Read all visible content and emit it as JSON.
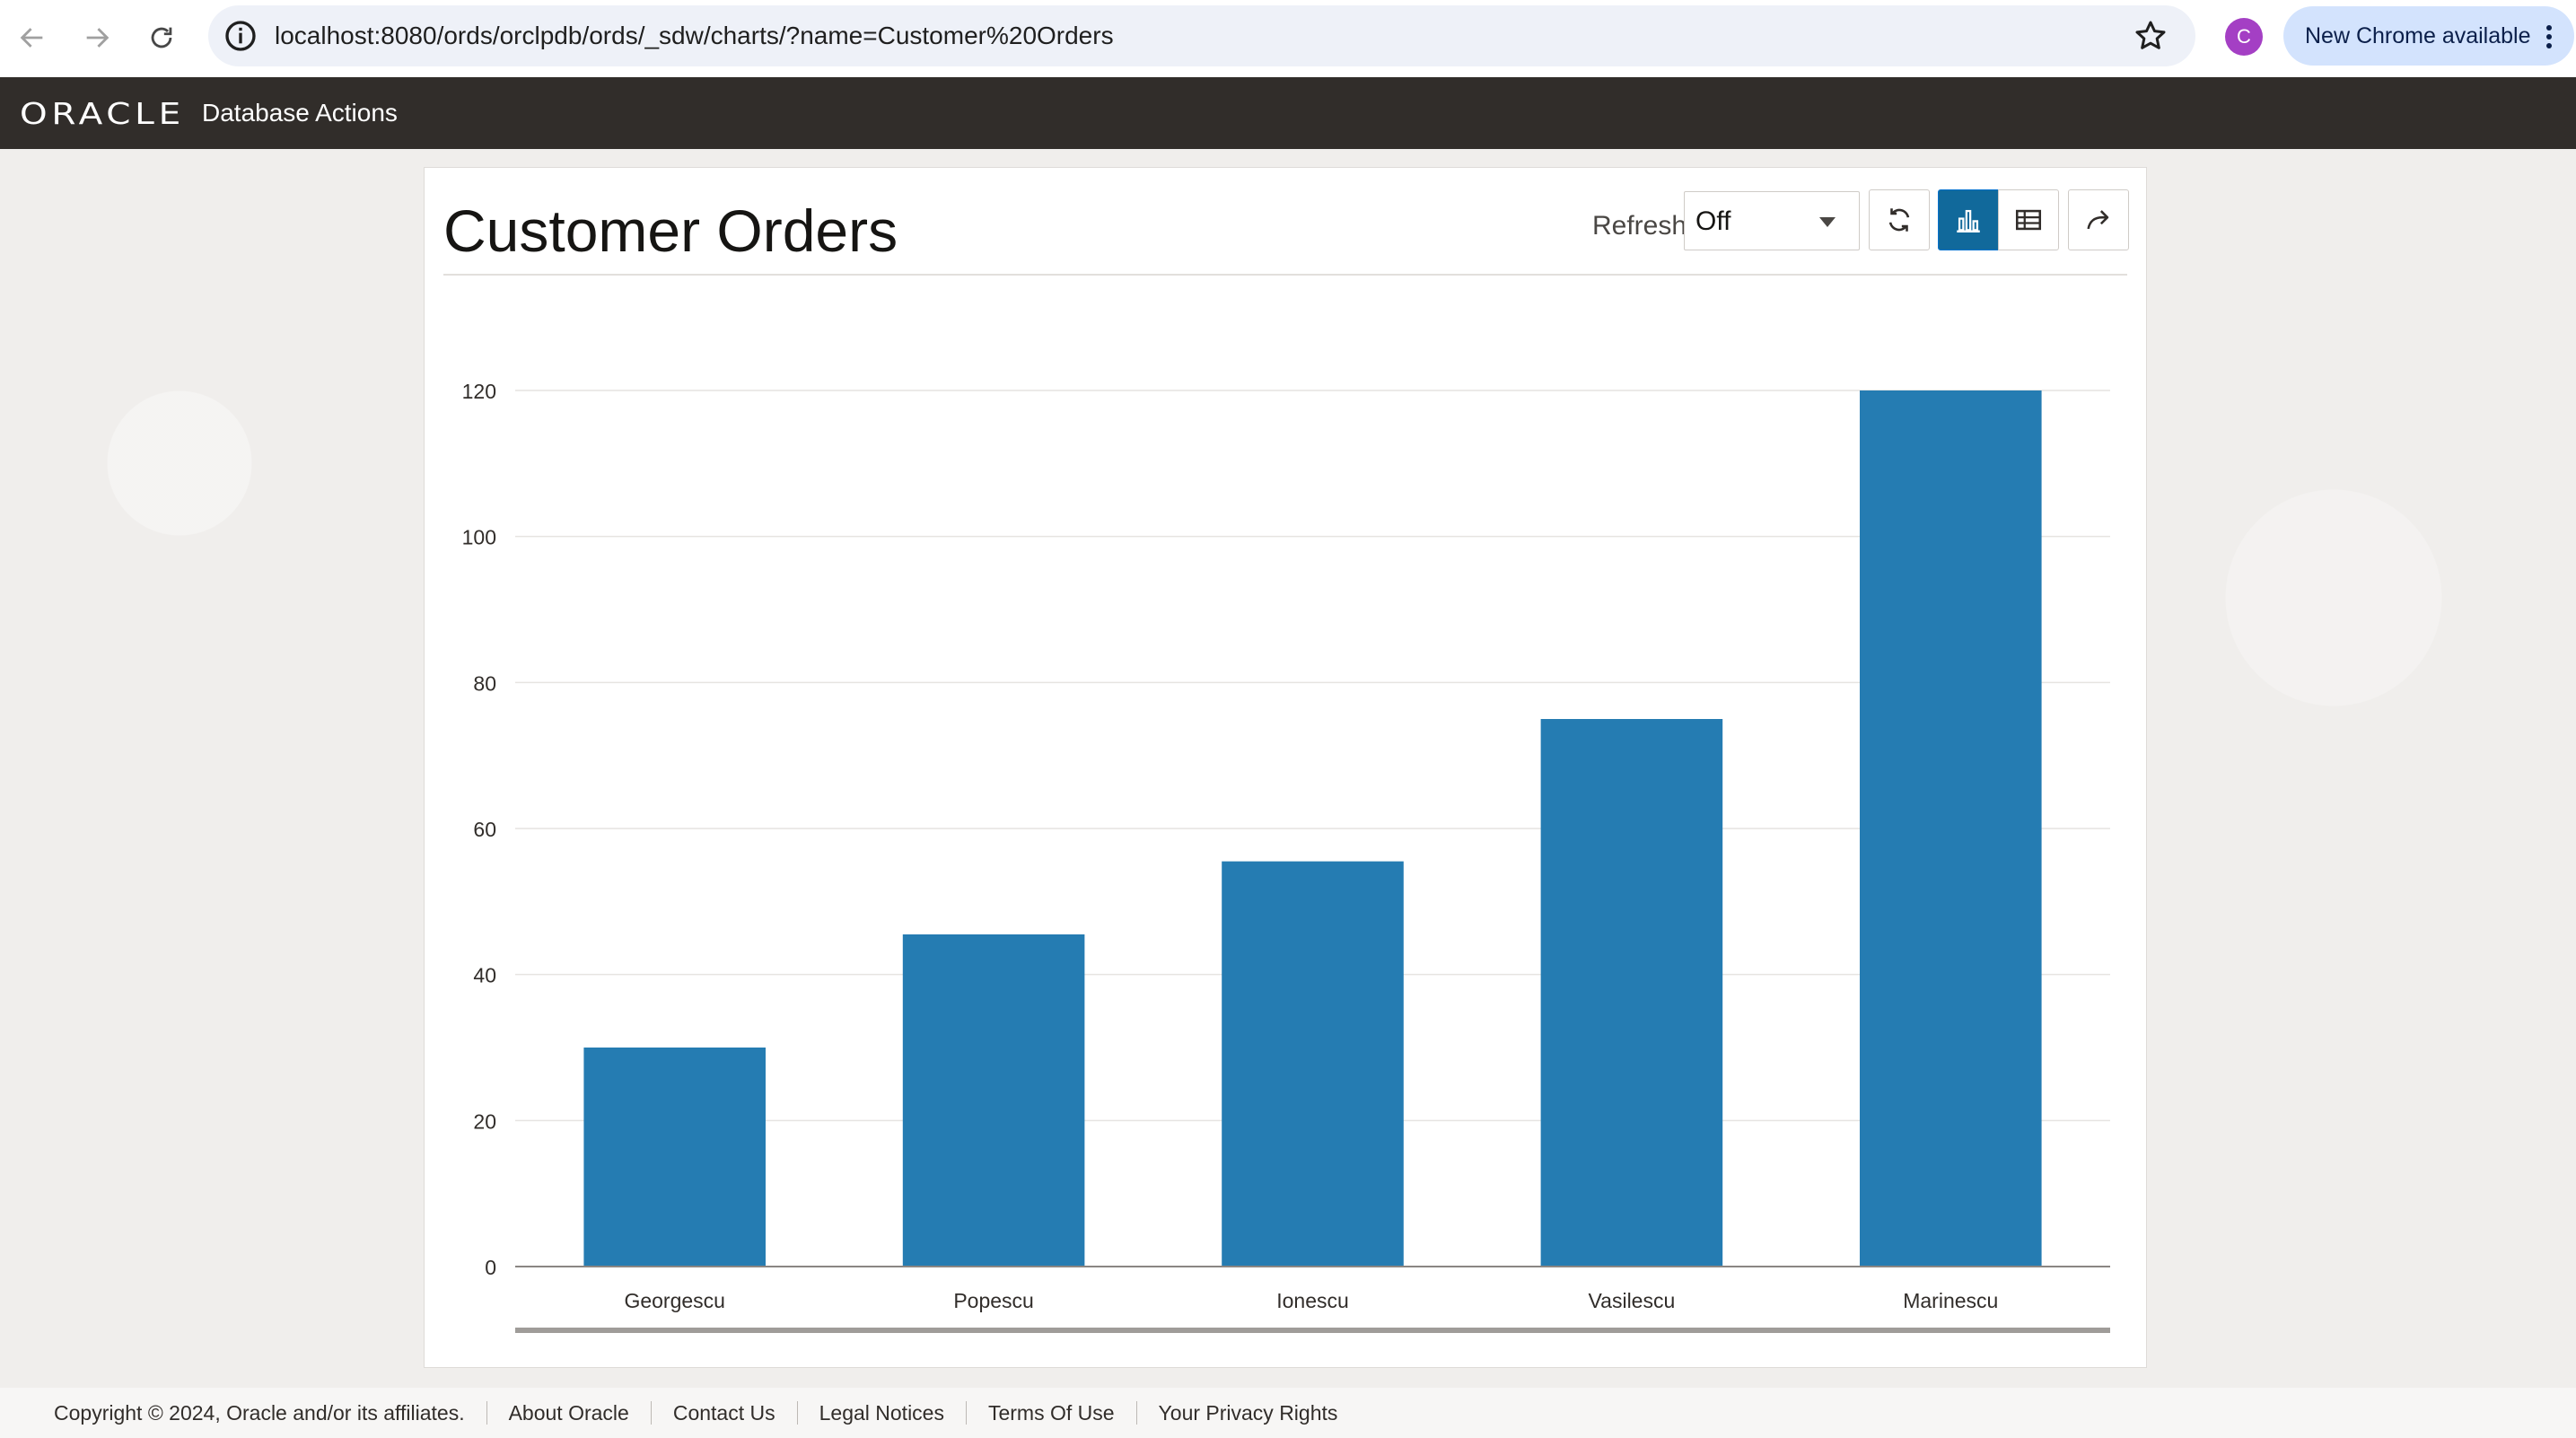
{
  "browser": {
    "url": "localhost:8080/ords/orclpdb/ords/_sdw/charts/?name=Customer%20Orders",
    "profile_initial": "C",
    "update_label": "New Chrome available"
  },
  "header": {
    "logo": "ORACLE",
    "app_name": "Database Actions"
  },
  "panel": {
    "title": "Customer Orders",
    "refresh_label": "Refresh",
    "refresh_value": "Off"
  },
  "colors": {
    "bar": "#257cb2",
    "header_bg": "#312d2a",
    "active_toggle": "#11699b"
  },
  "icons": {
    "refresh_button": "refresh-icon",
    "chart_view": "bar-chart-icon",
    "table_view": "table-icon",
    "share": "share-icon"
  },
  "chart_data": {
    "type": "bar",
    "categories": [
      "Georgescu",
      "Popescu",
      "Ionescu",
      "Vasilescu",
      "Marinescu"
    ],
    "values": [
      30,
      45.5,
      55.5,
      75,
      120
    ],
    "title": "",
    "xlabel": "",
    "ylabel": "",
    "ylim": [
      0,
      120
    ],
    "yticks": [
      "0",
      "20",
      "40",
      "60",
      "80",
      "100",
      "120"
    ],
    "grid": true
  },
  "footer": {
    "copyright": "Copyright © 2024, Oracle and/or its affiliates.",
    "links": [
      "About Oracle",
      "Contact Us",
      "Legal Notices",
      "Terms Of Use",
      "Your Privacy Rights"
    ]
  }
}
